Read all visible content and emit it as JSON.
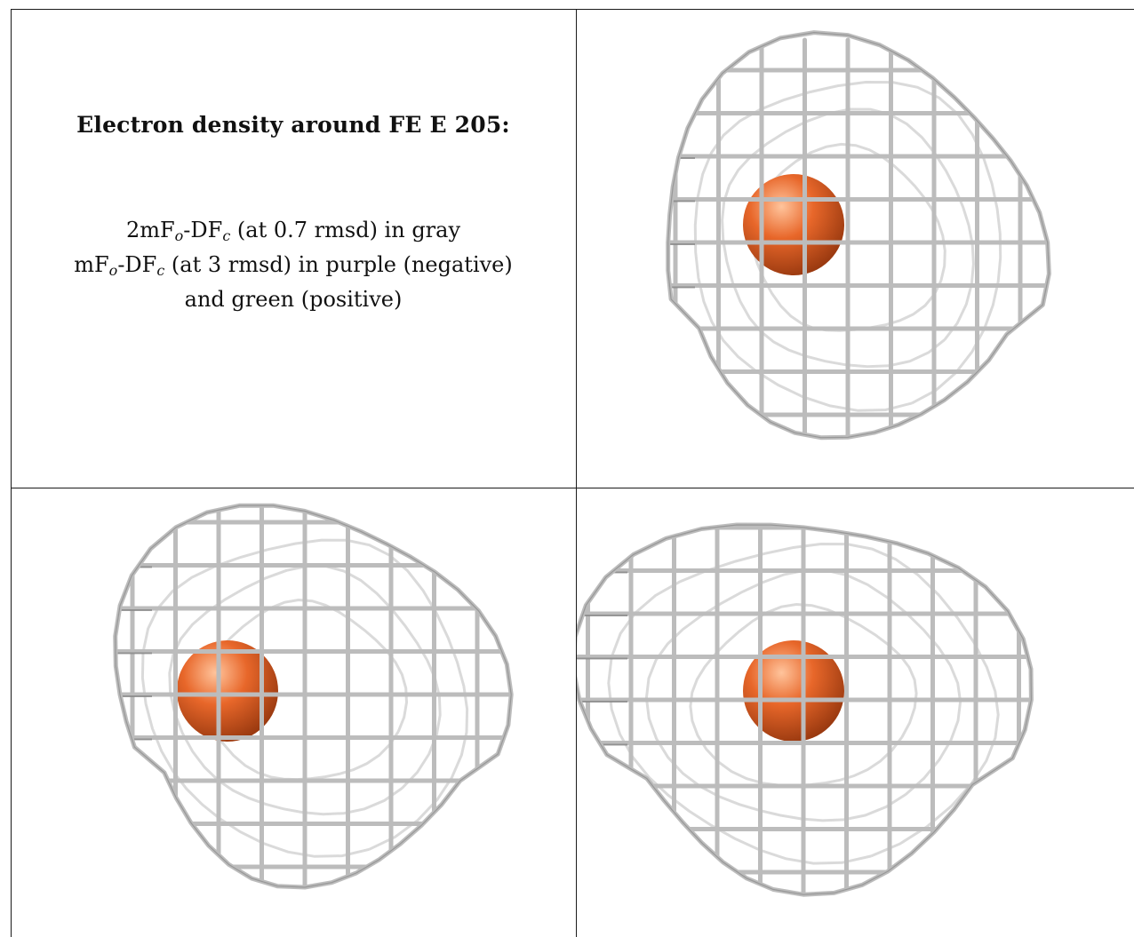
{
  "title": "Electron density around FE E 205:",
  "legend": {
    "line1": {
      "pre": "2mF",
      "sub1": "o",
      "mid": "-DF",
      "sub2": "c",
      "post": " (at 0.7 rmsd) in gray"
    },
    "line2": {
      "pre": "mF",
      "sub1": "o",
      "mid": "-DF",
      "sub2": "c",
      "post": " (at 3 rmsd) in purple (negative)"
    },
    "line3": "and green (positive)"
  },
  "colors": {
    "mesh": "#bcbcbc",
    "mesh_dark": "#7f7f7f",
    "atom": "#e8672a",
    "atom_dark": "#9b3a10",
    "atom_light": "#ffc49c",
    "rule": "#1a1a1a"
  },
  "views": [
    {
      "id": "view-1",
      "atom": "FE"
    },
    {
      "id": "view-2",
      "atom": "FE"
    },
    {
      "id": "view-3",
      "atom": "FE"
    }
  ]
}
